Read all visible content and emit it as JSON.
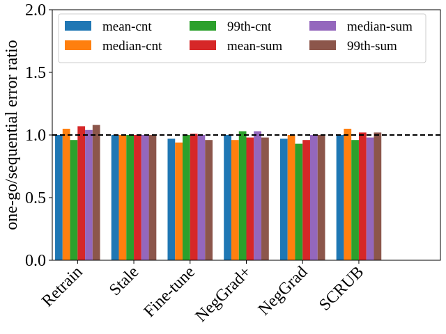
{
  "chart_data": {
    "type": "bar",
    "title": "",
    "xlabel": "",
    "ylabel": "one-go/sequential error ratio",
    "ylim": [
      0,
      2.0
    ],
    "yticks": [
      "0.0",
      "0.5",
      "1.0",
      "1.5",
      "2.0"
    ],
    "ytick_values": [
      0,
      0.5,
      1.0,
      1.5,
      2.0
    ],
    "reference_line": 1.0,
    "legend_position": "top",
    "categories": [
      "Retrain",
      "Stale",
      "Fine-tune",
      "NegGrad+",
      "NegGrad",
      "SCRUB"
    ],
    "series": [
      {
        "name": "mean-cnt",
        "color": "#1f77b4",
        "values": [
          1.0,
          1.0,
          0.97,
          1.0,
          0.97,
          1.0
        ]
      },
      {
        "name": "median-cnt",
        "color": "#ff7f0e",
        "values": [
          1.05,
          1.0,
          0.94,
          0.96,
          1.0,
          1.05
        ]
      },
      {
        "name": "99th-cnt",
        "color": "#2ca02c",
        "values": [
          0.96,
          1.0,
          1.0,
          1.03,
          0.93,
          0.96
        ]
      },
      {
        "name": "mean-sum",
        "color": "#d62728",
        "values": [
          1.07,
          1.0,
          1.01,
          0.98,
          0.96,
          1.02
        ]
      },
      {
        "name": "median-sum",
        "color": "#9467bd",
        "values": [
          1.04,
          1.0,
          1.0,
          1.03,
          1.0,
          0.98
        ]
      },
      {
        "name": "99th-sum",
        "color": "#8c564b",
        "values": [
          1.08,
          1.0,
          0.96,
          0.98,
          1.0,
          1.02
        ]
      }
    ]
  }
}
